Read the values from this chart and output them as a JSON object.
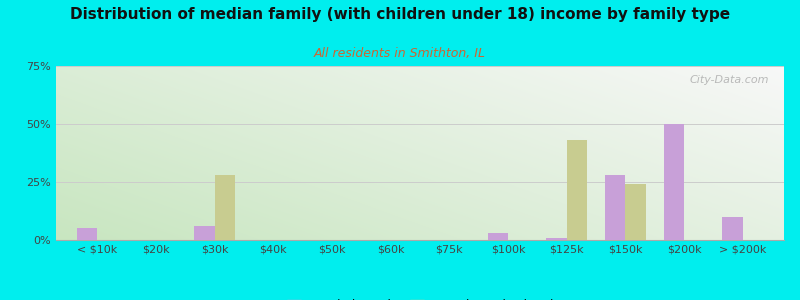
{
  "title": "Distribution of median family (with children under 18) income by family type",
  "subtitle": "All residents in Smithton, IL",
  "background_color": "#00EEEE",
  "categories": [
    "< $10k",
    "$20k",
    "$30k",
    "$40k",
    "$50k",
    "$60k",
    "$75k",
    "$100k",
    "$125k",
    "$150k",
    "$200k",
    "> $200k"
  ],
  "married_couple": [
    5,
    0,
    6,
    0,
    0,
    0,
    0,
    3,
    1,
    28,
    50,
    10
  ],
  "female_no_husband": [
    0,
    0,
    28,
    0,
    0,
    0,
    0,
    0,
    43,
    24,
    0,
    0
  ],
  "married_color": "#c8a0d8",
  "female_color": "#c8cc90",
  "ylim": [
    0,
    75
  ],
  "yticks": [
    0,
    25,
    50,
    75
  ],
  "ytick_labels": [
    "0%",
    "25%",
    "50%",
    "75%"
  ],
  "watermark": "City-Data.com",
  "bar_width": 0.35,
  "title_fontsize": 11,
  "subtitle_fontsize": 9,
  "subtitle_color": "#cc6633",
  "tick_fontsize": 8
}
